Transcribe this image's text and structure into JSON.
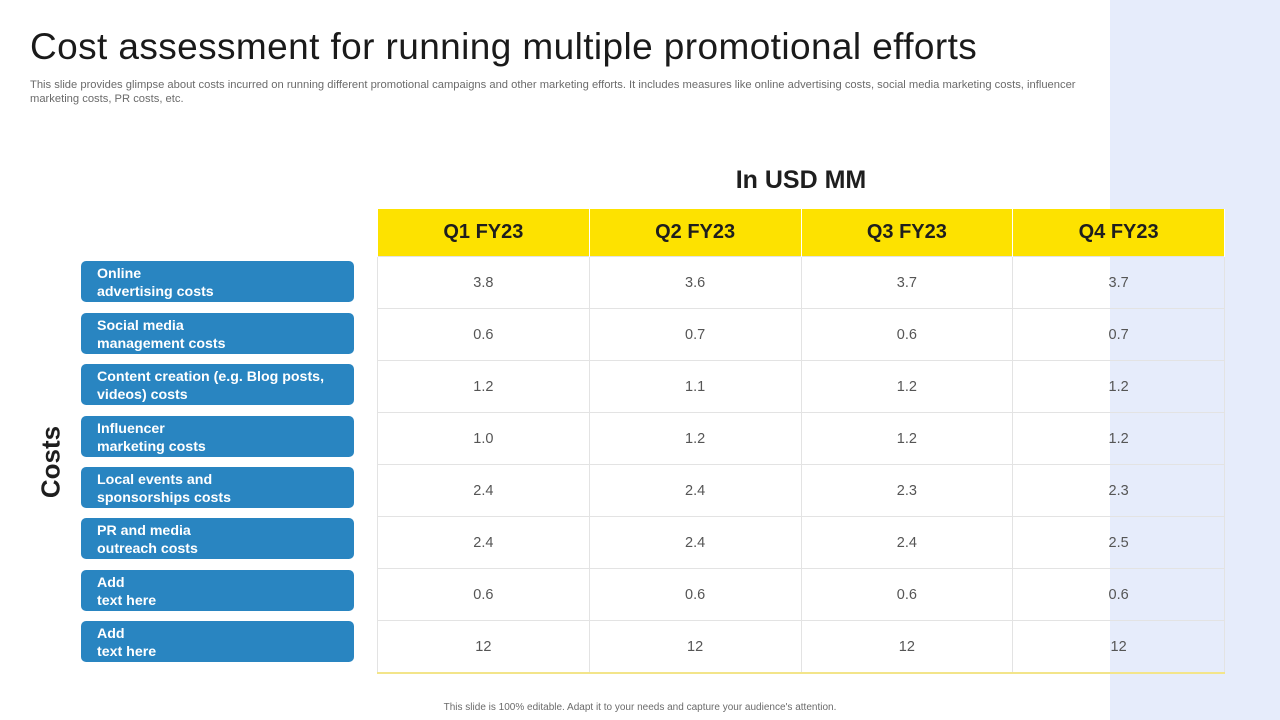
{
  "title": "Cost assessment for running multiple promotional efforts",
  "subtitle": "This slide provides glimpse about costs incurred on running different promotional campaigns and other marketing efforts. It includes measures like online advertising costs, social media marketing costs, influencer marketing costs, PR costs, etc.",
  "unit_label": "In USD MM",
  "costs_label": "Costs",
  "columns": [
    "Q1 FY23",
    "Q2 FY23",
    "Q3 FY23",
    "Q4 FY23"
  ],
  "rows": [
    {
      "label": "Online\nadvertising costs",
      "values": [
        "3.8",
        "3.6",
        "3.7",
        "3.7"
      ]
    },
    {
      "label": "Social media\nmanagement costs",
      "values": [
        "0.6",
        "0.7",
        "0.6",
        "0.7"
      ]
    },
    {
      "label": "Content creation (e.g. Blog posts,\nvideos) costs",
      "values": [
        "1.2",
        "1.1",
        "1.2",
        "1.2"
      ]
    },
    {
      "label": "Influencer\nmarketing costs",
      "values": [
        "1.0",
        "1.2",
        "1.2",
        "1.2"
      ]
    },
    {
      "label": "Local events and\nsponsorships costs",
      "values": [
        "2.4",
        "2.4",
        "2.3",
        "2.3"
      ]
    },
    {
      "label": "PR and media\noutreach costs",
      "values": [
        "2.4",
        "2.4",
        "2.4",
        "2.5"
      ]
    },
    {
      "label": "Add\ntext here",
      "values": [
        "0.6",
        "0.6",
        "0.6",
        "0.6"
      ]
    },
    {
      "label": "Add\ntext here",
      "values": [
        "12",
        "12",
        "12",
        "12"
      ]
    }
  ],
  "footer": "This slide is 100% editable.  Adapt it to your needs and capture your audience's attention.",
  "colors": {
    "header_yellow": "#fde200",
    "label_blue": "#2985c1",
    "side_panel": "#e6ecfb"
  }
}
